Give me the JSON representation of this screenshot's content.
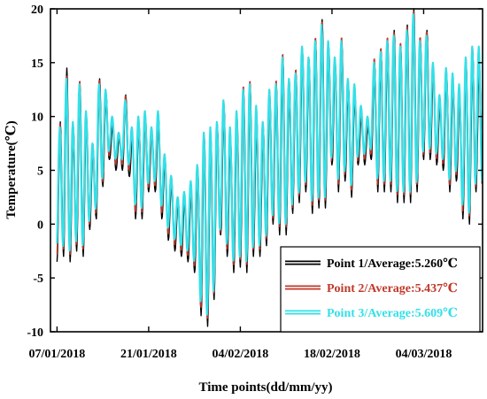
{
  "chart_data": {
    "type": "line",
    "title": "",
    "xlabel": "Time points(dd/mm/yy)",
    "ylabel": "Temperature(℃)",
    "ylim": [
      -10,
      20
    ],
    "yticks": [
      -10,
      -5,
      0,
      5,
      10,
      15,
      20
    ],
    "xlim": [
      "2018-01-06",
      "2018-03-13"
    ],
    "xtick_labels": [
      "07/01/2018",
      "21/01/2018",
      "04/02/2018",
      "18/02/2018",
      "04/03/2018"
    ],
    "xtick_dates": [
      "2018-01-07",
      "2018-01-21",
      "2018-02-04",
      "2018-02-18",
      "2018-03-04"
    ],
    "grid": false,
    "legend_position": "bottom-right",
    "colors": {
      "point1": "#000000",
      "point2": "#c0392b",
      "point3": "#33e0e8"
    },
    "x": [
      "2018-01-07",
      "2018-01-08",
      "2018-01-09",
      "2018-01-10",
      "2018-01-11",
      "2018-01-12",
      "2018-01-13",
      "2018-01-14",
      "2018-01-15",
      "2018-01-16",
      "2018-01-17",
      "2018-01-18",
      "2018-01-19",
      "2018-01-20",
      "2018-01-21",
      "2018-01-22",
      "2018-01-23",
      "2018-01-24",
      "2018-01-25",
      "2018-01-26",
      "2018-01-27",
      "2018-01-28",
      "2018-01-29",
      "2018-01-30",
      "2018-01-31",
      "2018-02-01",
      "2018-02-02",
      "2018-02-03",
      "2018-02-04",
      "2018-02-05",
      "2018-02-06",
      "2018-02-07",
      "2018-02-08",
      "2018-02-09",
      "2018-02-10",
      "2018-02-11",
      "2018-02-12",
      "2018-02-13",
      "2018-02-14",
      "2018-02-15",
      "2018-02-16",
      "2018-02-17",
      "2018-02-18",
      "2018-02-19",
      "2018-02-20",
      "2018-02-21",
      "2018-02-22",
      "2018-02-23",
      "2018-02-24",
      "2018-02-25",
      "2018-02-26",
      "2018-02-27",
      "2018-02-28",
      "2018-03-01",
      "2018-03-02",
      "2018-03-03",
      "2018-03-04",
      "2018-03-05",
      "2018-03-06",
      "2018-03-07",
      "2018-03-08",
      "2018-03-09",
      "2018-03-10",
      "2018-03-11",
      "2018-03-12"
    ],
    "series": [
      {
        "name": "Point 1/Average:5.260℃",
        "daily_min": [
          -3.5,
          -3,
          -3.5,
          -2.5,
          -3,
          -0.5,
          0.5,
          3.5,
          6,
          5,
          5,
          4.5,
          0.5,
          0.5,
          3,
          3,
          0.5,
          -1.5,
          -2.5,
          -3,
          -3.5,
          -4.5,
          -8.5,
          -9.5,
          -7,
          -1,
          -3,
          -4.5,
          -4,
          -4.5,
          -3,
          -3,
          -2,
          0,
          -1,
          -1,
          1,
          2,
          3,
          1,
          1.5,
          1.5,
          5.5,
          3,
          4,
          2.5,
          5.5,
          5.5,
          6,
          3,
          3,
          3,
          2,
          2,
          2,
          3,
          6,
          6,
          5.5,
          5,
          3,
          4,
          0.5,
          0,
          3
        ],
        "daily_max": [
          9.5,
          14.5,
          9,
          13,
          10,
          7,
          13.5,
          12,
          9,
          8,
          12,
          8,
          9.5,
          10,
          8.5,
          10,
          6,
          4,
          2,
          2,
          3,
          5,
          8,
          8,
          9,
          11,
          8,
          10,
          12.5,
          13,
          10,
          9,
          12,
          13,
          15.5,
          13,
          14,
          16,
          15,
          17,
          19,
          16.5,
          15,
          17,
          13,
          12,
          10,
          9,
          15,
          16,
          17,
          18,
          16.5,
          18.5,
          20,
          17,
          18,
          14,
          11,
          14,
          13,
          12,
          15,
          16,
          15
        ]
      },
      {
        "name": "Point 2/Average:5.437℃",
        "daily_min": [
          -3,
          -2.5,
          -3,
          -2,
          -2.5,
          0,
          1,
          4,
          6.5,
          5.5,
          5.5,
          5,
          1,
          1,
          3.5,
          3.5,
          1,
          -1,
          -2,
          -2.5,
          -3,
          -4,
          -8,
          -9,
          -6.5,
          -0.5,
          -2.5,
          -4,
          -3.5,
          -4,
          -2.5,
          -2.5,
          -1.5,
          0.5,
          -0.5,
          -0.5,
          1.5,
          2.5,
          3.5,
          1.5,
          2,
          2,
          6,
          3.5,
          4.5,
          3,
          6,
          6,
          6.5,
          3.5,
          3.5,
          3.5,
          2.5,
          2.5,
          2.5,
          3.5,
          6.5,
          6.5,
          6,
          5.5,
          3.5,
          4.5,
          1,
          0.5,
          3.5
        ],
        "daily_max": [
          9.5,
          14,
          9,
          13.5,
          10,
          7.5,
          13.5,
          12,
          9.5,
          8.5,
          12,
          8.5,
          9.5,
          10,
          8.5,
          10,
          6,
          4.5,
          2.5,
          2.5,
          3.5,
          5.5,
          8.5,
          8.5,
          9.5,
          11.5,
          8.5,
          10.5,
          13,
          13.5,
          10.5,
          9.5,
          12.5,
          13.5,
          16,
          13.5,
          14.5,
          16.5,
          15.5,
          17.5,
          19,
          17,
          15.5,
          17.5,
          13.5,
          12.5,
          10.5,
          9.5,
          15.5,
          16.5,
          17.5,
          18,
          17,
          18.5,
          20,
          17.5,
          18,
          14.5,
          11.5,
          14.5,
          13.5,
          12.5,
          15.5,
          16.5,
          16
        ]
      },
      {
        "name": "Point 3/Average:5.609℃",
        "daily_min": [
          -2.5,
          -2,
          -2.5,
          -1.5,
          -2,
          0.5,
          1.5,
          4.5,
          7,
          6,
          6,
          5.5,
          1.5,
          1.5,
          4,
          4,
          1.5,
          -0.5,
          -1.5,
          -2,
          -2.5,
          -3.5,
          -7.5,
          -8.5,
          -6,
          0,
          -2,
          -3.5,
          -3,
          -3.5,
          -2,
          -2,
          -1,
          1,
          0,
          0,
          2,
          3,
          4,
          2,
          2.5,
          2.5,
          6.5,
          4,
          5,
          3.5,
          6.5,
          6.5,
          7,
          4,
          4,
          4,
          3,
          3,
          3,
          4,
          7,
          7,
          6.5,
          6,
          4,
          5,
          1.5,
          1,
          4
        ],
        "daily_max": [
          9,
          13.5,
          9.5,
          13,
          10.5,
          7.5,
          13,
          12.5,
          10,
          8.5,
          11.5,
          9,
          10,
          10.5,
          9,
          10.5,
          6.5,
          4.5,
          2.5,
          3,
          4,
          5.5,
          8.5,
          9,
          9.5,
          11.5,
          9,
          10.5,
          12.5,
          13,
          11,
          9.5,
          12.5,
          13,
          15.5,
          13.5,
          14,
          16.5,
          15.5,
          17,
          18.5,
          17,
          15.5,
          17,
          13.5,
          13,
          11,
          10,
          15,
          16,
          17,
          17.5,
          16.5,
          18,
          19.5,
          17,
          17.5,
          15,
          12,
          14.5,
          14,
          13,
          15.5,
          16.5,
          16.5
        ]
      }
    ]
  }
}
